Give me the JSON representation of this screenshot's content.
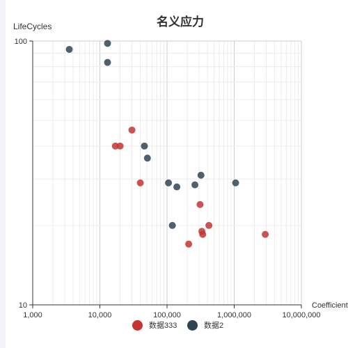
{
  "chart_data": {
    "type": "scatter",
    "title": "名义应力",
    "xlabel": "Coefficient",
    "ylabel": "LifeCycles",
    "xscale": "log",
    "yscale": "log",
    "xlim": [
      1000,
      10000000
    ],
    "ylim": [
      10,
      100
    ],
    "x_ticks": [
      "1,000",
      "10,000",
      "100,000",
      "1,000,000",
      "10,000,000"
    ],
    "y_ticks": [
      "10",
      "100"
    ],
    "grid": true,
    "legend_position": "bottom",
    "series": [
      {
        "name": "数据333",
        "color": "#c23531",
        "points": [
          [
            17000,
            40
          ],
          [
            20000,
            40
          ],
          [
            30000,
            46
          ],
          [
            40000,
            29
          ],
          [
            310000,
            24
          ],
          [
            330000,
            19
          ],
          [
            340000,
            18.5
          ],
          [
            420000,
            20
          ],
          [
            210000,
            17
          ],
          [
            2900000,
            18.5
          ]
        ]
      },
      {
        "name": "数据2",
        "color": "#2f4554",
        "points": [
          [
            3500,
            93
          ],
          [
            13000,
            98
          ],
          [
            13000,
            83
          ],
          [
            46000,
            40
          ],
          [
            51000,
            36
          ],
          [
            105000,
            29
          ],
          [
            140000,
            28
          ],
          [
            120000,
            20
          ],
          [
            260000,
            28.5
          ],
          [
            320000,
            31
          ],
          [
            1050000,
            29
          ]
        ]
      }
    ]
  }
}
